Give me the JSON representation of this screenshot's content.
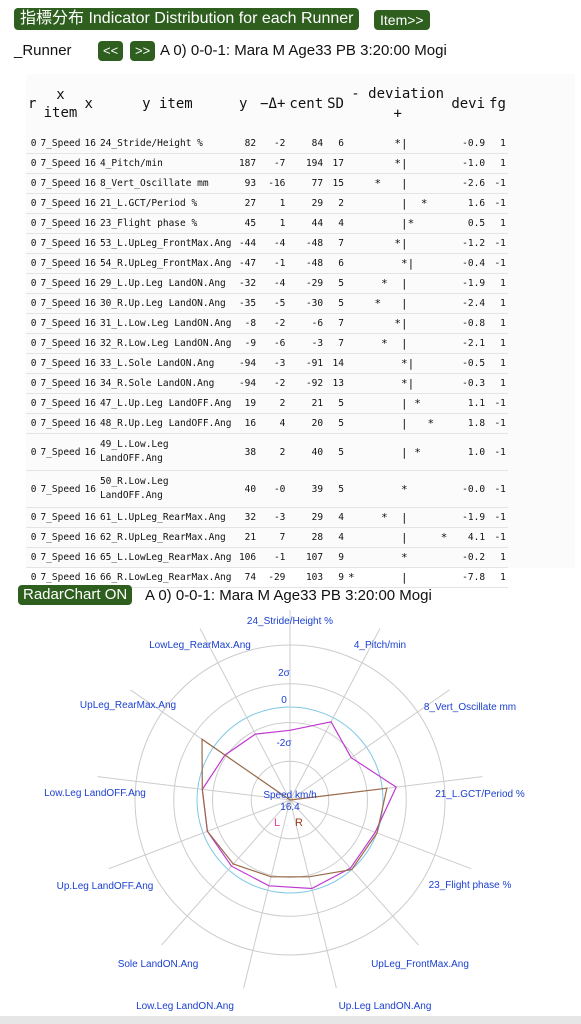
{
  "header": {
    "title_button": "指標分布 Indicator Distribution for each Runner",
    "item_button": "Item>>"
  },
  "runner_row": {
    "label": "_Runner",
    "prev_button": "<<",
    "next_button": ">>",
    "runner_info": "A 0) 0-0-1: Mara M Age33 PB 3:20:00 Mogi"
  },
  "table": {
    "headers": {
      "r": "r",
      "x_item": "x\nitem",
      "x": "x",
      "y_item": "y item",
      "y": "y",
      "delta": "−Δ+",
      "cent": "cent",
      "sd": "SD",
      "deviation": "- deviation\n+",
      "devi": "devi",
      "fg": "fg"
    },
    "rows": [
      {
        "r": "0",
        "x_item": "7_Speed",
        "x": "16",
        "y_item": "24_Stride/Height %",
        "y": "82",
        "delta": "-2",
        "cent": "84",
        "sd": "6",
        "bar": "       *|      ",
        "devi": "-0.9",
        "fg": "1"
      },
      {
        "r": "0",
        "x_item": "7_Speed",
        "x": "16",
        "y_item": "4_Pitch/min",
        "y": "187",
        "delta": "-7",
        "cent": "194",
        "sd": "17",
        "bar": "       *|      ",
        "devi": "-1.0",
        "fg": "1"
      },
      {
        "r": "0",
        "x_item": "7_Speed",
        "x": "16",
        "y_item": "8_Vert_Oscillate mm",
        "y": "93",
        "delta": "-16",
        "cent": "77",
        "sd": "15",
        "bar": "    *   |      ",
        "devi": "-2.6",
        "fg": "-1"
      },
      {
        "r": "0",
        "x_item": "7_Speed",
        "x": "16",
        "y_item": "21_L.GCT/Period %",
        "y": "27",
        "delta": "1",
        "cent": "29",
        "sd": "2",
        "bar": "        |  *   ",
        "devi": "1.6",
        "fg": "-1"
      },
      {
        "r": "0",
        "x_item": "7_Speed",
        "x": "16",
        "y_item": "23_Flight phase %",
        "y": "45",
        "delta": "1",
        "cent": "44",
        "sd": "4",
        "bar": "        |*     ",
        "devi": "0.5",
        "fg": "1"
      },
      {
        "r": "0",
        "x_item": "7_Speed",
        "x": "16",
        "y_item": "53_L.UpLeg_FrontMax.Ang",
        "y": "-44",
        "delta": "-4",
        "cent": "-48",
        "sd": "7",
        "bar": "       *|      ",
        "devi": "-1.2",
        "fg": "-1"
      },
      {
        "r": "0",
        "x_item": "7_Speed",
        "x": "16",
        "y_item": "54_R.UpLeg_FrontMax.Ang",
        "y": "-47",
        "delta": "-1",
        "cent": "-48",
        "sd": "6",
        "bar": "        *|     ",
        "devi": "-0.4",
        "fg": "-1"
      },
      {
        "r": "0",
        "x_item": "7_Speed",
        "x": "16",
        "y_item": "29_L.Up.Leg LandON.Ang",
        "y": "-32",
        "delta": "-4",
        "cent": "-29",
        "sd": "5",
        "bar": "     *  |      ",
        "devi": "-1.9",
        "fg": "1"
      },
      {
        "r": "0",
        "x_item": "7_Speed",
        "x": "16",
        "y_item": "30_R.Up.Leg LandON.Ang",
        "y": "-35",
        "delta": "-5",
        "cent": "-30",
        "sd": "5",
        "bar": "    *   |      ",
        "devi": "-2.4",
        "fg": "1"
      },
      {
        "r": "0",
        "x_item": "7_Speed",
        "x": "16",
        "y_item": "31_L.Low.Leg LandON.Ang",
        "y": "-8",
        "delta": "-2",
        "cent": "-6",
        "sd": "7",
        "bar": "       *|      ",
        "devi": "-0.8",
        "fg": "1"
      },
      {
        "r": "0",
        "x_item": "7_Speed",
        "x": "16",
        "y_item": "32_R.Low.Leg LandON.Ang",
        "y": "-9",
        "delta": "-6",
        "cent": "-3",
        "sd": "7",
        "bar": "     *  |      ",
        "devi": "-2.1",
        "fg": "1"
      },
      {
        "r": "0",
        "x_item": "7_Speed",
        "x": "16",
        "y_item": "33_L.Sole LandON.Ang",
        "y": "-94",
        "delta": "-3",
        "cent": "-91",
        "sd": "14",
        "bar": "        *|     ",
        "devi": "-0.5",
        "fg": "1"
      },
      {
        "r": "0",
        "x_item": "7_Speed",
        "x": "16",
        "y_item": "34_R.Sole LandON.Ang",
        "y": "-94",
        "delta": "-2",
        "cent": "-92",
        "sd": "13",
        "bar": "        *|     ",
        "devi": "-0.3",
        "fg": "1"
      },
      {
        "r": "0",
        "x_item": "7_Speed",
        "x": "16",
        "y_item": "47_L.Up.Leg LandOFF.Ang",
        "y": "19",
        "delta": "2",
        "cent": "21",
        "sd": "5",
        "bar": "        | *    ",
        "devi": "1.1",
        "fg": "-1"
      },
      {
        "r": "0",
        "x_item": "7_Speed",
        "x": "16",
        "y_item": "48_R.Up.Leg LandOFF.Ang",
        "y": "16",
        "delta": "4",
        "cent": "20",
        "sd": "5",
        "bar": "        |   *  ",
        "devi": "1.8",
        "fg": "-1"
      },
      {
        "r": "0",
        "x_item": "7_Speed",
        "x": "16",
        "y_item": "49_L.Low.Leg LandOFF.Ang",
        "y": "38",
        "delta": "2",
        "cent": "40",
        "sd": "5",
        "bar": "        | *    ",
        "devi": "1.0",
        "fg": "-1",
        "tall": true
      },
      {
        "r": "0",
        "x_item": "7_Speed",
        "x": "16",
        "y_item": "50_R.Low.Leg LandOFF.Ang",
        "y": "40",
        "delta": "-0",
        "cent": "39",
        "sd": "5",
        "bar": "        *      ",
        "devi": "-0.0",
        "fg": "-1",
        "tall": true
      },
      {
        "r": "0",
        "x_item": "7_Speed",
        "x": "16",
        "y_item": "61_L.UpLeg_RearMax.Ang",
        "y": "32",
        "delta": "-3",
        "cent": "29",
        "sd": "4",
        "bar": "     *  |      ",
        "devi": "-1.9",
        "fg": "-1"
      },
      {
        "r": "0",
        "x_item": "7_Speed",
        "x": "16",
        "y_item": "62_R.UpLeg_RearMax.Ang",
        "y": "21",
        "delta": "7",
        "cent": "28",
        "sd": "4",
        "bar": "        |     *",
        "devi": "4.1",
        "fg": "-1"
      },
      {
        "r": "0",
        "x_item": "7_Speed",
        "x": "16",
        "y_item": "65_L.LowLeg_RearMax.Ang",
        "y": "106",
        "delta": "-1",
        "cent": "107",
        "sd": "9",
        "bar": "        *      ",
        "devi": "-0.2",
        "fg": "1"
      },
      {
        "r": "0",
        "x_item": "7_Speed",
        "x": "16",
        "y_item": "66_R.LowLeg_RearMax.Ang",
        "y": "74",
        "delta": "-29",
        "cent": "103",
        "sd": "9",
        "bar": "*       |      ",
        "devi": "-7.8",
        "fg": "1"
      }
    ]
  },
  "radar_row": {
    "button": "RadarChart ON",
    "runner_info": "A 0) 0-0-1: Mara M Age33 PB 3:20:00 Mogi"
  },
  "radar": {
    "colors": {
      "grid": "#cccccc",
      "zero_ring": "#7ec8e3",
      "center_line": "#c03ad0",
      "runner_line": "#9a6a4a",
      "axis_label": "#1a3fd0",
      "l_label": "#e040a0",
      "r_label": "#a04020"
    },
    "ring_labels": [
      "2σ",
      "0",
      "-2σ"
    ],
    "center_title": "Speed km/h",
    "center_value": "16.4",
    "l_label": "L",
    "r_label": "R",
    "axis_labels": [
      "24_Stride/Height %",
      "4_Pitch/min",
      "8_Vert_Oscillate mm",
      "21_L.GCT/Period %",
      "23_Flight phase %",
      "UpLeg_FrontMax.Ang",
      "Up.Leg LandON.Ang",
      "Low.Leg LandON.Ang",
      "Sole LandON.Ang",
      "Up.Leg LandOFF.Ang",
      "Low.Leg LandOFF.Ang",
      "UpLeg_RearMax.Ang",
      "LowLeg_RearMax.Ang"
    ],
    "center_series": [
      0.75,
      0.95,
      0.8,
      1.15,
      0.98,
      0.98,
      0.98,
      0.95,
      0.95,
      0.95,
      0.95,
      0.85,
      0.8
    ],
    "runner_series": [
      -0.05,
      0.0,
      0.0,
      1.05,
      1.0,
      1.0,
      0.85,
      0.85,
      0.92,
      0.95,
      0.95,
      1.15,
      0.0
    ]
  }
}
